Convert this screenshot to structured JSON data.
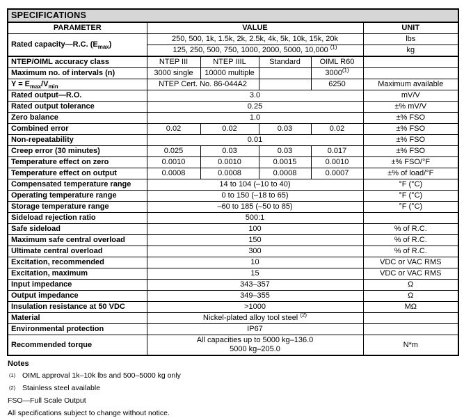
{
  "title": "SPECIFICATIONS",
  "colors": {
    "title_bar_bg": "#d6d6d6",
    "border": "#000000",
    "text": "#000000",
    "page_bg": "#ffffff"
  },
  "table": {
    "headers": [
      "PARAMETER",
      "VALUE",
      "UNIT"
    ],
    "rows": [
      {
        "param": "Rated capacity—R.C. (E~max~)",
        "param_rowspan": 2,
        "values": [
          {
            "text": "250, 500, 1k, 1.5k, 2k, 2.5k, 4k, 5k, 10k, 15k, 20k",
            "span": 4
          }
        ],
        "unit": "lbs"
      },
      {
        "values": [
          {
            "text": "125, 250, 500, 750, 1000, 2000, 5000, 10,000 ^(1)^",
            "span": 4
          }
        ],
        "unit": "kg"
      },
      {
        "param": "NTEP/OIML accuracy class",
        "thick_top": true,
        "values": [
          {
            "text": "NTEP III",
            "span": 1
          },
          {
            "text": "NTEP IIIL",
            "span": 1
          },
          {
            "text": "Standard",
            "span": 1
          },
          {
            "text": "OIML R60",
            "span": 1
          }
        ],
        "unit": ""
      },
      {
        "param": "Maximum no. of intervals (n)",
        "values": [
          {
            "text": "3000 single",
            "span": 1
          },
          {
            "text": "10000 multiple",
            "span": 1
          },
          {
            "text": "",
            "span": 1
          },
          {
            "text": "3000^(1)^",
            "span": 1
          }
        ],
        "unit": ""
      },
      {
        "param": "Y = E~max~/V~min~",
        "values": [
          {
            "text": "NTEP Cert. No. 86-044A2",
            "span": 2
          },
          {
            "text": "",
            "span": 1
          },
          {
            "text": "6250",
            "span": 1
          }
        ],
        "unit": "Maximum available"
      },
      {
        "param": "Rated output—R.O.",
        "values": [
          {
            "text": "3.0",
            "span": 4
          }
        ],
        "unit": "mV/V"
      },
      {
        "param": "Rated output tolerance",
        "values": [
          {
            "text": "0.25",
            "span": 4
          }
        ],
        "unit": "±% mV/V"
      },
      {
        "param": "Zero balance",
        "values": [
          {
            "text": "1.0",
            "span": 4
          }
        ],
        "unit": "±% FSO"
      },
      {
        "param": "Combined error",
        "values": [
          {
            "text": "0.02",
            "span": 1
          },
          {
            "text": "0.02",
            "span": 1
          },
          {
            "text": "0.03",
            "span": 1
          },
          {
            "text": "0.02",
            "span": 1
          }
        ],
        "unit": "±% FSO"
      },
      {
        "param": "Non-repeatability",
        "values": [
          {
            "text": "0.01",
            "span": 4
          }
        ],
        "unit": "±% FSO"
      },
      {
        "param": "Creep error (30 minutes)",
        "values": [
          {
            "text": "0.025",
            "span": 1
          },
          {
            "text": "0.03",
            "span": 1
          },
          {
            "text": "0.03",
            "span": 1
          },
          {
            "text": "0.017",
            "span": 1
          }
        ],
        "unit": "±% FSO"
      },
      {
        "param": "Temperature effect on zero",
        "values": [
          {
            "text": "0.0010",
            "span": 1
          },
          {
            "text": "0.0010",
            "span": 1
          },
          {
            "text": "0.0015",
            "span": 1
          },
          {
            "text": "0.0010",
            "span": 1
          }
        ],
        "unit": "±% FSO/°F"
      },
      {
        "param": "Temperature effect on output",
        "values": [
          {
            "text": "0.0008",
            "span": 1
          },
          {
            "text": "0.0008",
            "span": 1
          },
          {
            "text": "0.0008",
            "span": 1
          },
          {
            "text": "0.0007",
            "span": 1
          }
        ],
        "unit": "±% of load/°F"
      },
      {
        "param": "Compensated temperature range",
        "values": [
          {
            "text": "14 to 104 (–10 to 40)",
            "span": 4
          }
        ],
        "unit": "°F (°C)"
      },
      {
        "param": "Operating temperature range",
        "values": [
          {
            "text": "0 to 150 (–18 to 65)",
            "span": 4
          }
        ],
        "unit": "°F (°C)"
      },
      {
        "param": "Storage temperature range",
        "values": [
          {
            "text": "–60 to 185 (–50 to 85)",
            "span": 4
          }
        ],
        "unit": "°F (°C)"
      },
      {
        "param": "Sideload rejection ratio",
        "values": [
          {
            "text": "500:1",
            "span": 4
          }
        ],
        "unit": ""
      },
      {
        "param": "Safe sideload",
        "values": [
          {
            "text": "100",
            "span": 4
          }
        ],
        "unit": "% of R.C."
      },
      {
        "param": "Maximum safe central overload",
        "values": [
          {
            "text": "150",
            "span": 4
          }
        ],
        "unit": "% of R.C."
      },
      {
        "param": "Ultimate central overload",
        "values": [
          {
            "text": "300",
            "span": 4
          }
        ],
        "unit": "% of R.C."
      },
      {
        "param": "Excitation, recommended",
        "values": [
          {
            "text": "10",
            "span": 4
          }
        ],
        "unit": "VDC or VAC RMS"
      },
      {
        "param": "Excitation, maximum",
        "values": [
          {
            "text": "15",
            "span": 4
          }
        ],
        "unit": "VDC or VAC RMS"
      },
      {
        "param": "Input impedance",
        "values": [
          {
            "text": "343–357",
            "span": 4
          }
        ],
        "unit": "Ω"
      },
      {
        "param": "Output impedance",
        "values": [
          {
            "text": "349–355",
            "span": 4
          }
        ],
        "unit": "Ω"
      },
      {
        "param": "Insulation resistance at 50 VDC",
        "values": [
          {
            "text": ">1000",
            "span": 4
          }
        ],
        "unit": "MΩ"
      },
      {
        "param": "Material",
        "values": [
          {
            "text": "Nickel-plated alloy tool steel ^(2)^",
            "span": 4
          }
        ],
        "unit": ""
      },
      {
        "param": "Environmental protection",
        "values": [
          {
            "text": "IP67",
            "span": 4
          }
        ],
        "unit": ""
      },
      {
        "param": "Recommended torque",
        "values": [
          {
            "text": "All capacities up to 5000 kg–136.0\n5000 kg–205.0",
            "span": 4
          }
        ],
        "unit": "N*m"
      }
    ]
  },
  "notes": {
    "heading": "Notes",
    "items": [
      {
        "marker": "(1)",
        "text": "OIML approval 1k–10k lbs and 500–5000 kg only"
      },
      {
        "marker": "(2)",
        "text": "Stainless steel available"
      }
    ],
    "footnotes": [
      "FSO—Full Scale Output",
      "All specifications subject to change without notice."
    ]
  }
}
